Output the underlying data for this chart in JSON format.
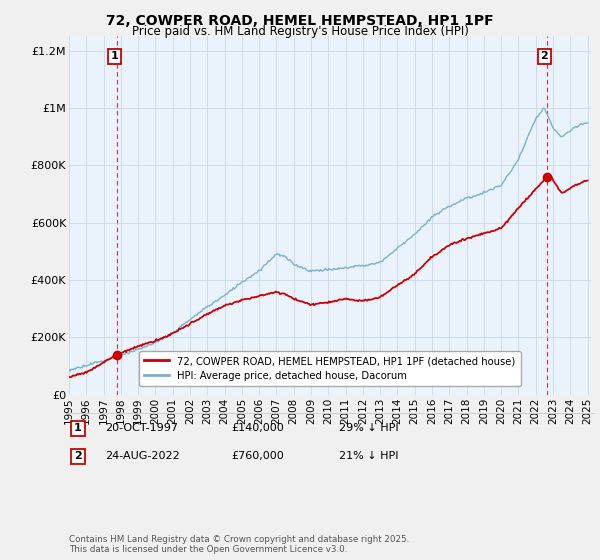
{
  "title": "72, COWPER ROAD, HEMEL HEMPSTEAD, HP1 1PF",
  "subtitle": "Price paid vs. HM Land Registry's House Price Index (HPI)",
  "legend_label_red": "72, COWPER ROAD, HEMEL HEMPSTEAD, HP1 1PF (detached house)",
  "legend_label_blue": "HPI: Average price, detached house, Dacorum",
  "annotation1_label": "1",
  "annotation1_date": "20-OCT-1997",
  "annotation1_price": "£140,000",
  "annotation1_hpi": "29% ↓ HPI",
  "annotation2_label": "2",
  "annotation2_date": "24-AUG-2022",
  "annotation2_price": "£760,000",
  "annotation2_hpi": "21% ↓ HPI",
  "footer": "Contains HM Land Registry data © Crown copyright and database right 2025.\nThis data is licensed under the Open Government Licence v3.0.",
  "xlim": [
    1995.3,
    2025.2
  ],
  "ylim": [
    0,
    1250000
  ],
  "yticks": [
    0,
    200000,
    400000,
    600000,
    800000,
    1000000,
    1200000
  ],
  "ytick_labels": [
    "£0",
    "£200K",
    "£400K",
    "£600K",
    "£800K",
    "£1M",
    "£1.2M"
  ],
  "xticks": [
    1995,
    1996,
    1997,
    1998,
    1999,
    2000,
    2001,
    2002,
    2003,
    2004,
    2005,
    2006,
    2007,
    2008,
    2009,
    2010,
    2011,
    2012,
    2013,
    2014,
    2015,
    2016,
    2017,
    2018,
    2019,
    2020,
    2021,
    2022,
    2023,
    2024,
    2025
  ],
  "red_line_color": "#cc0000",
  "blue_line_color": "#7ab0d4",
  "annotation_line_color": "#cc0000",
  "grid_color": "#c8d8e8",
  "background_color": "#eaf3fb",
  "plot_bg_color": "#eaf3fb",
  "sale1_x": 1997.8,
  "sale1_y": 140000,
  "sale2_x": 2022.65,
  "sale2_y": 760000
}
